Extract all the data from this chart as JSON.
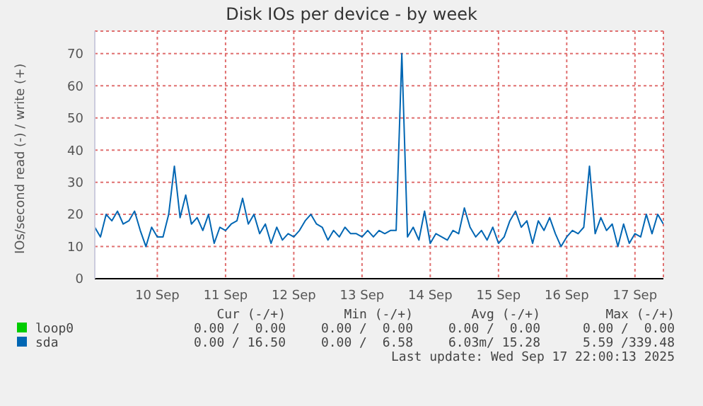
{
  "chart_data": {
    "type": "line",
    "title": "Disk IOs per device - by week",
    "ylabel": "IOs/second read (-) / write (+)",
    "x": [
      "2025-09-09T14:00",
      "2025-09-09T16:00",
      "2025-09-09T18:00",
      "2025-09-09T20:00",
      "2025-09-09T22:00",
      "2025-09-10T00:00",
      "2025-09-10T02:00",
      "2025-09-10T04:00",
      "2025-09-10T06:00",
      "2025-09-10T08:00",
      "2025-09-10T10:00",
      "2025-09-10T12:00",
      "2025-09-10T14:00",
      "2025-09-10T16:00",
      "2025-09-10T18:00",
      "2025-09-10T20:00",
      "2025-09-10T22:00",
      "2025-09-11T00:00",
      "2025-09-11T02:00",
      "2025-09-11T04:00",
      "2025-09-11T06:00",
      "2025-09-11T08:00",
      "2025-09-11T10:00",
      "2025-09-11T12:00",
      "2025-09-11T14:00",
      "2025-09-11T16:00",
      "2025-09-11T18:00",
      "2025-09-11T20:00",
      "2025-09-11T22:00",
      "2025-09-12T00:00",
      "2025-09-12T02:00",
      "2025-09-12T04:00",
      "2025-09-12T06:00",
      "2025-09-12T08:00",
      "2025-09-12T10:00",
      "2025-09-12T12:00",
      "2025-09-12T14:00",
      "2025-09-12T16:00",
      "2025-09-12T18:00",
      "2025-09-12T20:00",
      "2025-09-12T22:00",
      "2025-09-13T00:00",
      "2025-09-13T02:00",
      "2025-09-13T04:00",
      "2025-09-13T06:00",
      "2025-09-13T08:00",
      "2025-09-13T10:00",
      "2025-09-13T12:00",
      "2025-09-13T14:00",
      "2025-09-13T16:00",
      "2025-09-13T18:00",
      "2025-09-13T20:00",
      "2025-09-13T22:00",
      "2025-09-14T00:00",
      "2025-09-14T02:00",
      "2025-09-14T04:00",
      "2025-09-14T06:00",
      "2025-09-14T08:00",
      "2025-09-14T10:00",
      "2025-09-14T12:00",
      "2025-09-14T14:00",
      "2025-09-14T16:00",
      "2025-09-14T18:00",
      "2025-09-14T20:00",
      "2025-09-14T22:00",
      "2025-09-15T00:00",
      "2025-09-15T02:00",
      "2025-09-15T04:00",
      "2025-09-15T06:00",
      "2025-09-15T08:00",
      "2025-09-15T10:00",
      "2025-09-15T12:00",
      "2025-09-15T14:00",
      "2025-09-15T16:00",
      "2025-09-15T18:00",
      "2025-09-15T20:00",
      "2025-09-15T22:00",
      "2025-09-16T00:00",
      "2025-09-16T02:00",
      "2025-09-16T04:00",
      "2025-09-16T06:00",
      "2025-09-16T08:00",
      "2025-09-16T10:00",
      "2025-09-16T12:00",
      "2025-09-16T14:00",
      "2025-09-16T16:00",
      "2025-09-16T18:00",
      "2025-09-16T20:00",
      "2025-09-16T22:00",
      "2025-09-17T00:00",
      "2025-09-17T02:00",
      "2025-09-17T04:00",
      "2025-09-17T06:00",
      "2025-09-17T08:00",
      "2025-09-17T10:00",
      "2025-09-17T12:00",
      "2025-09-17T14:00",
      "2025-09-17T16:00",
      "2025-09-17T18:00",
      "2025-09-17T20:00",
      "2025-09-17T22:00"
    ],
    "series": [
      {
        "name": "loop0",
        "color": "#00cc00",
        "values": [
          null,
          null,
          null,
          null,
          null,
          null,
          null,
          null,
          null,
          null,
          null,
          null,
          null,
          null,
          null,
          null,
          null,
          null,
          null,
          null,
          null,
          null,
          null,
          null,
          null,
          null,
          null,
          null,
          null,
          null,
          null,
          null,
          null,
          null,
          null,
          null,
          null,
          null,
          null,
          null,
          null,
          null,
          null,
          null,
          null,
          null,
          null,
          null,
          null,
          null,
          null,
          null,
          null,
          null,
          null,
          null,
          null,
          null,
          null,
          null,
          null,
          null,
          null,
          null,
          null,
          null,
          null,
          null,
          null,
          null,
          null,
          null,
          null,
          null,
          null,
          null,
          null,
          null,
          null,
          null,
          null,
          null,
          null,
          null,
          null,
          null,
          null,
          null,
          null,
          null,
          null,
          null,
          null,
          null,
          null,
          null,
          null,
          null,
          null,
          null,
          null
        ]
      },
      {
        "name": "sda",
        "color": "#0066b3",
        "values": [
          16,
          13,
          20,
          18,
          21,
          17,
          18,
          21,
          15,
          10,
          16,
          13,
          13,
          20,
          35,
          19,
          26,
          17,
          19,
          15,
          20,
          11,
          16,
          15,
          17,
          18,
          25,
          17,
          20,
          14,
          17,
          11,
          16,
          12,
          14,
          13,
          15,
          18,
          20,
          17,
          16,
          12,
          15,
          13,
          16,
          14,
          14,
          13,
          15,
          13,
          15,
          14,
          15,
          15,
          70,
          13,
          16,
          12,
          21,
          11,
          14,
          13,
          12,
          15,
          14,
          22,
          16,
          13,
          15,
          12,
          16,
          11,
          13,
          18,
          21,
          16,
          18,
          11,
          18,
          15,
          19,
          14,
          10,
          13,
          15,
          14,
          16,
          35,
          14,
          19,
          15,
          17,
          10,
          17,
          11,
          14,
          13,
          20,
          14,
          20,
          17
        ]
      }
    ],
    "xlim": [
      "2025-09-09T14:00",
      "2025-09-17T22:00"
    ],
    "xticks": [
      {
        "value": "2025-09-10T12:00",
        "label": "10 Sep"
      },
      {
        "value": "2025-09-11T12:00",
        "label": "11 Sep"
      },
      {
        "value": "2025-09-12T12:00",
        "label": "12 Sep"
      },
      {
        "value": "2025-09-13T12:00",
        "label": "13 Sep"
      },
      {
        "value": "2025-09-14T12:00",
        "label": "14 Sep"
      },
      {
        "value": "2025-09-15T12:00",
        "label": "15 Sep"
      },
      {
        "value": "2025-09-16T12:00",
        "label": "16 Sep"
      },
      {
        "value": "2025-09-17T12:00",
        "label": "17 Sep"
      }
    ],
    "ylim": [
      0,
      77
    ],
    "yticks": [
      0,
      10,
      20,
      30,
      40,
      50,
      60,
      70
    ],
    "grid": true,
    "legend": "bottom left",
    "marker": "none",
    "line_style": "solid",
    "annotations": [
      "Cur (-/+)",
      "Min (-/+)",
      "Avg (-/+)",
      "Max (-/+)",
      "0.00 /  0.00",
      "0.00 /  0.00",
      "0.00 /  0.00",
      "0.00 /  0.00",
      "0.00 / 16.50",
      "0.00 /  6.58",
      "6.03m/ 15.28",
      "5.59 /339.48",
      "Last update: Wed Sep 17 22:00:13 2025"
    ]
  }
}
